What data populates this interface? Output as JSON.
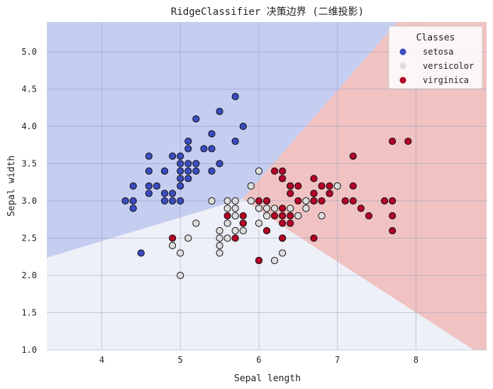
{
  "chart_data": {
    "type": "scatter",
    "title": "RidgeClassifier 决策边界 (二维投影)",
    "xlabel": "Sepal length",
    "ylabel": "Sepal width",
    "xlim": [
      3.3,
      8.9
    ],
    "ylim": [
      1.0,
      5.4
    ],
    "x_ticks": [
      4,
      5,
      6,
      7,
      8
    ],
    "y_ticks": [
      1.0,
      1.5,
      2.0,
      2.5,
      3.0,
      3.5,
      4.0,
      4.5,
      5.0
    ],
    "grid": true,
    "legend": {
      "title": "Classes",
      "placement": "top-right"
    },
    "regions": [
      {
        "class": "setosa",
        "color": "#c5cdf1"
      },
      {
        "class": "versicolor",
        "color": "#eef0f8"
      },
      {
        "class": "virginica",
        "color": "#f0c3c2"
      }
    ],
    "series": [
      {
        "name": "setosa",
        "color": "#3b4cc0",
        "points": [
          [
            4.3,
            3.0
          ],
          [
            4.4,
            2.9
          ],
          [
            4.4,
            3.0
          ],
          [
            4.4,
            3.2
          ],
          [
            4.5,
            2.3
          ],
          [
            4.6,
            3.1
          ],
          [
            4.6,
            3.2
          ],
          [
            4.6,
            3.4
          ],
          [
            4.6,
            3.6
          ],
          [
            4.7,
            3.2
          ],
          [
            4.8,
            3.0
          ],
          [
            4.8,
            3.1
          ],
          [
            4.8,
            3.4
          ],
          [
            4.9,
            3.0
          ],
          [
            4.9,
            3.1
          ],
          [
            4.9,
            3.6
          ],
          [
            5.0,
            3.0
          ],
          [
            5.0,
            3.2
          ],
          [
            5.0,
            3.3
          ],
          [
            5.0,
            3.4
          ],
          [
            5.0,
            3.5
          ],
          [
            5.0,
            3.6
          ],
          [
            5.1,
            3.3
          ],
          [
            5.1,
            3.4
          ],
          [
            5.1,
            3.5
          ],
          [
            5.1,
            3.7
          ],
          [
            5.1,
            3.8
          ],
          [
            5.2,
            3.4
          ],
          [
            5.2,
            3.5
          ],
          [
            5.2,
            4.1
          ],
          [
            5.3,
            3.7
          ],
          [
            5.4,
            3.4
          ],
          [
            5.4,
            3.7
          ],
          [
            5.4,
            3.9
          ],
          [
            5.5,
            3.5
          ],
          [
            5.5,
            4.2
          ],
          [
            5.7,
            3.8
          ],
          [
            5.7,
            4.4
          ],
          [
            5.8,
            4.0
          ]
        ]
      },
      {
        "name": "versicolor",
        "color": "#dddddd",
        "points": [
          [
            4.9,
            2.4
          ],
          [
            5.0,
            2.0
          ],
          [
            5.0,
            2.3
          ],
          [
            5.1,
            2.5
          ],
          [
            5.2,
            2.7
          ],
          [
            5.4,
            3.0
          ],
          [
            5.5,
            2.3
          ],
          [
            5.5,
            2.4
          ],
          [
            5.5,
            2.5
          ],
          [
            5.5,
            2.6
          ],
          [
            5.6,
            2.5
          ],
          [
            5.6,
            2.7
          ],
          [
            5.6,
            2.9
          ],
          [
            5.6,
            3.0
          ],
          [
            5.7,
            2.6
          ],
          [
            5.7,
            2.8
          ],
          [
            5.7,
            2.9
          ],
          [
            5.7,
            3.0
          ],
          [
            5.8,
            2.6
          ],
          [
            5.8,
            2.7
          ],
          [
            5.9,
            3.0
          ],
          [
            5.9,
            3.2
          ],
          [
            6.0,
            2.2
          ],
          [
            6.0,
            2.7
          ],
          [
            6.0,
            2.9
          ],
          [
            6.0,
            3.4
          ],
          [
            6.1,
            2.8
          ],
          [
            6.1,
            2.9
          ],
          [
            6.1,
            3.0
          ],
          [
            6.2,
            2.2
          ],
          [
            6.2,
            2.9
          ],
          [
            6.3,
            2.3
          ],
          [
            6.3,
            2.5
          ],
          [
            6.3,
            3.3
          ],
          [
            6.4,
            2.9
          ],
          [
            6.4,
            3.2
          ],
          [
            6.5,
            2.8
          ],
          [
            6.6,
            2.9
          ],
          [
            6.6,
            3.0
          ],
          [
            6.7,
            3.0
          ],
          [
            6.7,
            3.1
          ],
          [
            6.8,
            2.8
          ],
          [
            6.9,
            3.1
          ],
          [
            7.0,
            3.2
          ]
        ]
      },
      {
        "name": "virginica",
        "color": "#b40426",
        "points": [
          [
            4.9,
            2.5
          ],
          [
            5.6,
            2.8
          ],
          [
            5.7,
            2.5
          ],
          [
            5.8,
            2.7
          ],
          [
            5.8,
            2.8
          ],
          [
            6.0,
            2.2
          ],
          [
            6.0,
            3.0
          ],
          [
            6.1,
            2.6
          ],
          [
            6.1,
            3.0
          ],
          [
            6.2,
            2.8
          ],
          [
            6.2,
            3.4
          ],
          [
            6.3,
            2.5
          ],
          [
            6.3,
            2.7
          ],
          [
            6.3,
            2.8
          ],
          [
            6.3,
            2.9
          ],
          [
            6.3,
            3.3
          ],
          [
            6.3,
            3.4
          ],
          [
            6.4,
            2.7
          ],
          [
            6.4,
            2.8
          ],
          [
            6.4,
            3.1
          ],
          [
            6.4,
            3.2
          ],
          [
            6.5,
            3.0
          ],
          [
            6.5,
            3.2
          ],
          [
            6.7,
            2.5
          ],
          [
            6.7,
            3.0
          ],
          [
            6.7,
            3.1
          ],
          [
            6.7,
            3.3
          ],
          [
            6.8,
            3.0
          ],
          [
            6.8,
            3.2
          ],
          [
            6.9,
            3.1
          ],
          [
            6.9,
            3.2
          ],
          [
            7.1,
            3.0
          ],
          [
            7.2,
            3.0
          ],
          [
            7.2,
            3.2
          ],
          [
            7.2,
            3.6
          ],
          [
            7.3,
            2.9
          ],
          [
            7.4,
            2.8
          ],
          [
            7.6,
            3.0
          ],
          [
            7.7,
            2.6
          ],
          [
            7.7,
            2.8
          ],
          [
            7.7,
            3.0
          ],
          [
            7.7,
            3.8
          ],
          [
            7.9,
            3.8
          ]
        ]
      }
    ]
  }
}
